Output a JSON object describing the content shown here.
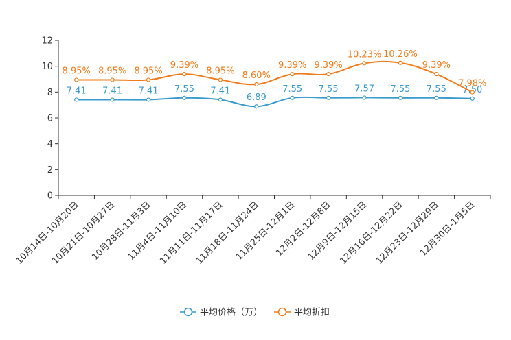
{
  "chart_data": {
    "type": "line",
    "title": "",
    "xlabel": "",
    "ylabel": "",
    "ylim": [
      0,
      12
    ],
    "yticks": [
      0,
      2,
      4,
      6,
      8,
      10,
      12
    ],
    "categories": [
      "10月14日-10月20日",
      "10月21日-10月27日",
      "10月28日-11月3日",
      "11月4日-11月10日",
      "11月11日-11月17日",
      "11月18日-11月24日",
      "11月25日-12月1日",
      "12月2日-12月8日",
      "12月9日-12月15日",
      "12月16日-12月22日",
      "12月23日-12月29日",
      "12月30日-1月5日"
    ],
    "series": [
      {
        "name": "平均价格（万）",
        "color": "#3a9bcd",
        "values": [
          7.41,
          7.41,
          7.41,
          7.55,
          7.41,
          6.89,
          7.55,
          7.55,
          7.57,
          7.55,
          7.55,
          7.5
        ],
        "labels": [
          "7.41",
          "7.41",
          "7.41",
          "7.55",
          "7.41",
          "6.89",
          "7.55",
          "7.55",
          "7.57",
          "7.55",
          "7.55",
          "7.50"
        ]
      },
      {
        "name": "平均折扣",
        "color": "#f07b1b",
        "values": [
          8.95,
          8.95,
          8.95,
          9.39,
          8.95,
          8.6,
          9.39,
          9.39,
          10.23,
          10.26,
          9.39,
          7.98
        ],
        "labels": [
          "8.95%",
          "8.95%",
          "8.95%",
          "9.39%",
          "8.95%",
          "8.60%",
          "9.39%",
          "9.39%",
          "10.23%",
          "10.26%",
          "9.39%",
          "7.98%"
        ]
      }
    ],
    "legend": "bottom-center"
  }
}
